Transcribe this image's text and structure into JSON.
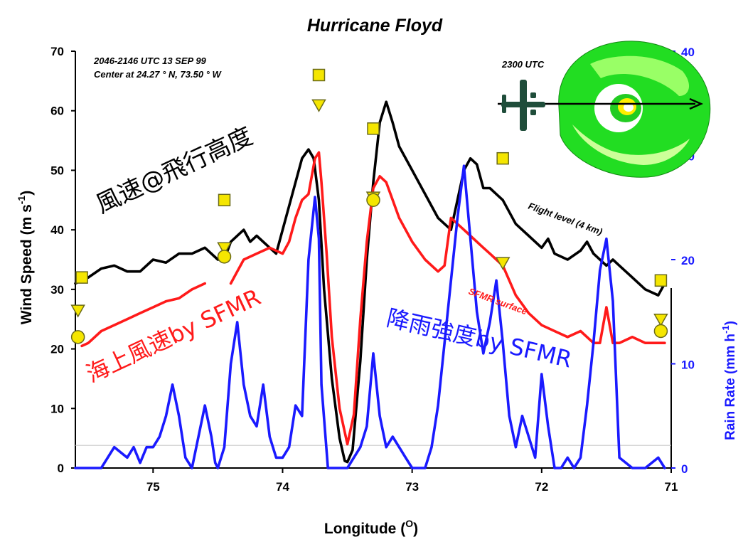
{
  "chart_data": {
    "type": "line",
    "title": "Hurricane Floyd",
    "subtitle_lines": [
      "2046-2146 UTC 13 SEP 99",
      "Center at 24.27 ° N, 73.50 ° W"
    ],
    "xlabel": "Longitude (O)",
    "xlabel_text": "Longitude (",
    "xlabel_unit": "O",
    "xlabel_close": ")",
    "ylabel": "Wind Speed (m s-1)",
    "ylabel_text": "Wind Speed (m s",
    "ylabel_exp": "-1",
    "ylabel_close": ")",
    "y2label": "Rain Rate (mm h-1)",
    "y2label_text": "Rain Rate (mm h",
    "y2label_exp": "-1",
    "y2label_close": ")",
    "xlim": [
      75.6,
      71.0
    ],
    "ylim": [
      0,
      70
    ],
    "y2lim": [
      0,
      40
    ],
    "x_ticks": [
      75,
      74,
      73,
      72,
      71
    ],
    "y_ticks": [
      0,
      10,
      20,
      30,
      40,
      50,
      60,
      70
    ],
    "y2_ticks": [
      0,
      10,
      20,
      30,
      40
    ],
    "inset_label": "2300 UTC",
    "annotations": {
      "flight_level": "Flight level (4 km)",
      "sfmr_surface": "SFMR surface",
      "flight_level_jp": "風速@飛行高度",
      "surface_jp": "海上風速by SFMR",
      "rain_jp": "降雨強度by SFMR"
    },
    "colors": {
      "flight_level": "#000000",
      "sfmr_surface": "#ff1a1a",
      "rain_rate": "#1a1aff",
      "marker_fill": "#f5e600",
      "marker_stroke": "#6b6b1a",
      "ref_line": "#c8c8c8"
    },
    "reference_line_y": 3.8,
    "series": [
      {
        "key": "flight_level",
        "name": "Flight level (4 km)",
        "axis": "left",
        "x": [
          75.6,
          75.5,
          75.4,
          75.3,
          75.2,
          75.1,
          75.0,
          74.9,
          74.8,
          74.7,
          74.6,
          74.5,
          74.45,
          74.4,
          74.3,
          74.25,
          74.2,
          74.1,
          74.05,
          74.0,
          73.95,
          73.9,
          73.85,
          73.8,
          73.76,
          73.72,
          73.68,
          73.62,
          73.56,
          73.52,
          73.5,
          73.46,
          73.4,
          73.35,
          73.3,
          73.25,
          73.2,
          73.15,
          73.1,
          73.0,
          72.9,
          72.8,
          72.7,
          72.65,
          72.6,
          72.55,
          72.5,
          72.45,
          72.4,
          72.35,
          72.3,
          72.2,
          72.1,
          72.0,
          71.95,
          71.9,
          71.8,
          71.7,
          71.65,
          71.6,
          71.5,
          71.45,
          71.4,
          71.3,
          71.2,
          71.1,
          71.05
        ],
        "values": [
          31,
          32,
          33.5,
          34,
          33,
          33,
          35,
          34.5,
          36,
          36,
          37,
          35,
          35,
          38,
          40,
          38,
          39,
          37,
          36,
          40,
          44,
          48,
          52,
          53.5,
          52,
          45,
          30,
          15,
          5,
          1.2,
          1,
          3,
          18,
          35,
          48,
          58,
          61.5,
          58,
          54,
          50,
          46,
          42,
          40,
          45,
          50,
          52,
          51,
          47,
          47,
          46,
          45,
          41,
          39,
          37,
          38.5,
          36,
          35,
          36.5,
          38,
          36,
          34,
          35,
          34,
          32,
          30,
          29,
          31
        ]
      },
      {
        "key": "sfmr_surface",
        "name": "SFMR surface",
        "axis": "left",
        "x": [
          75.55,
          75.5,
          75.4,
          75.3,
          75.2,
          75.1,
          75.0,
          74.9,
          74.8,
          74.7,
          74.6,
          74.55,
          74.5,
          74.45,
          74.4,
          74.35,
          74.3,
          74.2,
          74.1,
          74.0,
          73.95,
          73.9,
          73.85,
          73.8,
          73.75,
          73.72,
          73.7,
          73.66,
          73.62,
          73.56,
          73.5,
          73.45,
          73.4,
          73.35,
          73.3,
          73.25,
          73.2,
          73.15,
          73.1,
          73.0,
          72.9,
          72.8,
          72.75,
          72.7,
          72.65,
          72.6,
          72.55,
          72.5,
          72.45,
          72.4,
          72.35,
          72.3,
          72.2,
          72.1,
          72.0,
          71.9,
          71.8,
          71.7,
          71.6,
          71.55,
          71.5,
          71.45,
          71.4,
          71.3,
          71.2,
          71.1,
          71.05
        ],
        "values": [
          20.5,
          21,
          23,
          24,
          25,
          26,
          27,
          28,
          28.5,
          30,
          31,
          null,
          null,
          null,
          31,
          33,
          35,
          36,
          37,
          36,
          38,
          42,
          45,
          46,
          52,
          53,
          48,
          36,
          22,
          10,
          4,
          9,
          25,
          38,
          47,
          49,
          48,
          45,
          42,
          38,
          35,
          33,
          34,
          42,
          41,
          40,
          39,
          38,
          37,
          36,
          35,
          34,
          29,
          26,
          24,
          23,
          22,
          23,
          21,
          21,
          27,
          21,
          21,
          22,
          21,
          21,
          21
        ]
      },
      {
        "key": "rain_rate",
        "name": "Rain Rate",
        "axis": "right",
        "x": [
          75.6,
          75.5,
          75.4,
          75.35,
          75.3,
          75.2,
          75.15,
          75.1,
          75.05,
          75.0,
          74.95,
          74.9,
          74.85,
          74.8,
          74.75,
          74.7,
          74.65,
          74.6,
          74.55,
          74.52,
          74.5,
          74.45,
          74.4,
          74.35,
          74.3,
          74.25,
          74.2,
          74.15,
          74.1,
          74.05,
          74.0,
          73.95,
          73.9,
          73.85,
          73.8,
          73.75,
          73.72,
          73.7,
          73.65,
          73.6,
          73.5,
          73.4,
          73.35,
          73.3,
          73.25,
          73.2,
          73.15,
          73.1,
          73.05,
          73.0,
          72.9,
          72.85,
          72.8,
          72.75,
          72.7,
          72.65,
          72.6,
          72.55,
          72.5,
          72.45,
          72.4,
          72.35,
          72.3,
          72.25,
          72.2,
          72.15,
          72.1,
          72.05,
          72.0,
          71.95,
          71.9,
          71.85,
          71.8,
          71.75,
          71.7,
          71.65,
          71.6,
          71.55,
          71.5,
          71.45,
          71.4,
          71.3,
          71.2,
          71.1,
          71.05
        ],
        "values": [
          0,
          0,
          0,
          1,
          2,
          1,
          2,
          0.5,
          2,
          2,
          3,
          5,
          8,
          5,
          1,
          0,
          3,
          6,
          3,
          0.5,
          0,
          2,
          10,
          14,
          8,
          5,
          4,
          8,
          3,
          1,
          1,
          2,
          6,
          5,
          20,
          26,
          22,
          8,
          0,
          0,
          0,
          2,
          4,
          11,
          5,
          2,
          3,
          2,
          1,
          0,
          0,
          2,
          6,
          12,
          18,
          24,
          29,
          22,
          15,
          11,
          14,
          18,
          12,
          5,
          2,
          5,
          3,
          1,
          9,
          4,
          0,
          0,
          1,
          0,
          1,
          6,
          12,
          19,
          22,
          16,
          1,
          0,
          0,
          1,
          0
        ]
      }
    ],
    "markers": {
      "squares": [
        [
          75.55,
          32
        ],
        [
          74.45,
          45
        ],
        [
          73.72,
          66
        ],
        [
          73.3,
          57
        ],
        [
          72.3,
          52
        ],
        [
          71.08,
          31.5
        ]
      ],
      "triangles": [
        [
          75.58,
          26.5
        ],
        [
          74.45,
          37
        ],
        [
          73.72,
          61
        ],
        [
          73.3,
          45.5
        ],
        [
          72.3,
          34.5
        ],
        [
          71.08,
          25
        ]
      ],
      "circles": [
        [
          75.58,
          22
        ],
        [
          74.45,
          35.5
        ],
        [
          73.3,
          45
        ],
        [
          71.08,
          23
        ]
      ]
    }
  }
}
